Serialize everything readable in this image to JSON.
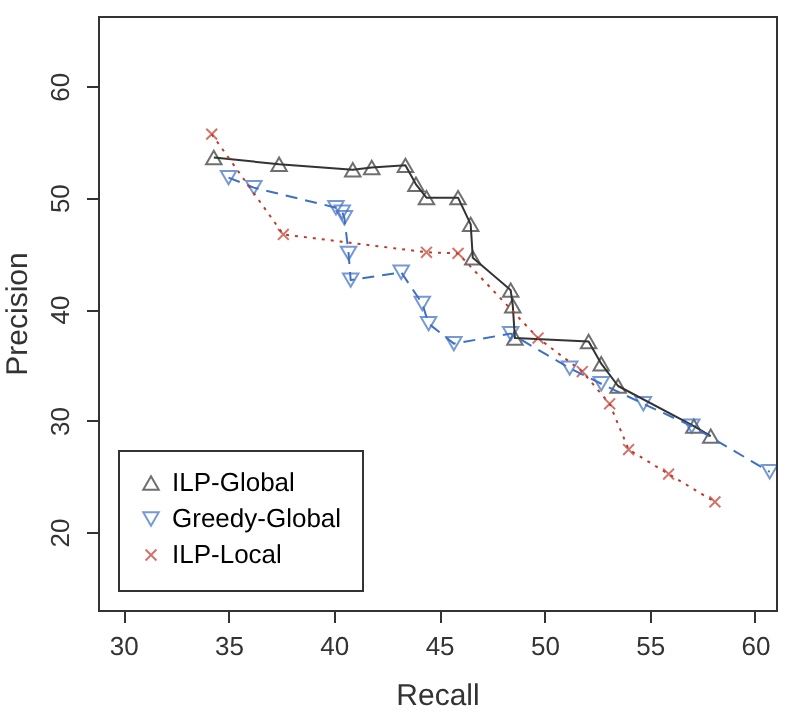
{
  "chart_data": {
    "type": "line",
    "xlabel": "Recall",
    "ylabel": "Precision",
    "xlim": [
      28.8,
      61
    ],
    "ylim": [
      13,
      66.3
    ],
    "xticks": [
      30,
      35,
      40,
      45,
      50,
      55,
      60
    ],
    "yticks": [
      20,
      30,
      40,
      50,
      60
    ],
    "legend": "bottom left",
    "grid": false,
    "series": [
      {
        "name": "ILP-Global",
        "color": "#333333",
        "marker": "triangle",
        "line_style": "solid",
        "x": [
          34.3,
          37.4,
          40.9,
          41.8,
          43.4,
          43.9,
          44.4,
          45.9,
          46.5,
          46.6,
          48.4,
          48.5,
          48.6,
          52.1,
          52.7,
          53.5,
          57.1,
          57.9
        ],
        "values": [
          53.6,
          53.0,
          52.5,
          52.7,
          52.9,
          51.2,
          50.0,
          50.0,
          47.6,
          44.6,
          41.7,
          40.3,
          37.4,
          37.1,
          35.1,
          33.1,
          29.5,
          28.6
        ]
      },
      {
        "name": "Greedy-Global",
        "color": "#3d6fc4",
        "marker": "triangle-down",
        "line_style": "dashed",
        "x": [
          35.0,
          36.2,
          40.1,
          40.4,
          40.5,
          40.7,
          40.8,
          43.2,
          44.2,
          44.5,
          45.7,
          48.4,
          51.2,
          52.7,
          54.7,
          57.0,
          60.7
        ],
        "values": [
          51.8,
          50.9,
          49.1,
          48.7,
          48.2,
          45.0,
          42.6,
          43.3,
          40.5,
          38.7,
          36.9,
          37.8,
          34.7,
          33.3,
          31.5,
          29.5,
          25.4
        ]
      },
      {
        "name": "ILP-Local",
        "color": "#c0392b",
        "marker": "cross",
        "line_style": "dotted",
        "x": [
          34.2,
          37.6,
          44.4,
          45.9,
          49.7,
          51.8,
          53.1,
          54.0,
          55.9,
          58.1
        ],
        "values": [
          55.7,
          46.7,
          45.1,
          45.0,
          37.4,
          34.4,
          31.5,
          27.4,
          25.2,
          22.7
        ]
      }
    ]
  }
}
